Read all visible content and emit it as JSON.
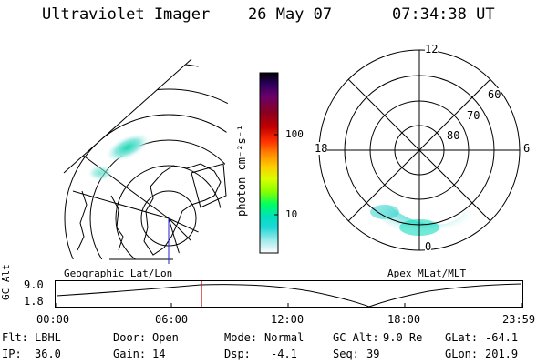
{
  "header": {
    "title": "Ultraviolet Imager",
    "date": "26 May 07",
    "time": "07:34:38 UT"
  },
  "left_map": {
    "caption": "Geographic Lat/Lon"
  },
  "colorbar": {
    "unit_label": "photon cm⁻²s⁻¹",
    "ticks": [
      "100",
      "10"
    ],
    "colors": [
      "#000000",
      "#2a005a",
      "#6a006a",
      "#8a0020",
      "#c00000",
      "#ff3000",
      "#ff8800",
      "#ffcc00",
      "#d8ff00",
      "#88ff00",
      "#00ff60",
      "#00e0c0",
      "#20d8d8",
      "#90e8e8",
      "#d8f4f4",
      "#ffffff"
    ]
  },
  "polar_plot": {
    "caption": "Apex  MLat/MLT",
    "mlt_labels": [
      "12",
      "18",
      "6",
      "0"
    ],
    "lat_labels": [
      "60",
      "70",
      "80"
    ]
  },
  "timeline": {
    "axis_label": "GC Alt",
    "y_ticks": [
      "9.0",
      "1.8"
    ],
    "x_ticks": [
      "00:00",
      "06:00",
      "12:00",
      "18:00",
      "23:59"
    ],
    "marker_color": "#cc0000"
  },
  "info": {
    "flt_label": "Flt:",
    "flt_value": "LBHL",
    "ip_label": "IP:",
    "ip_value": "36.0",
    "door_label": "Door:",
    "door_value": "Open",
    "gain_label": "Gain:",
    "gain_value": "14",
    "mode_label": "Mode:",
    "mode_value": "Normal",
    "dsp_label": "Dsp:",
    "dsp_value": "-4.1",
    "gcalt_label": "GC Alt:",
    "gcalt_value": "9.0 Re",
    "seq_label": "Seq:",
    "seq_value": "39",
    "glat_label": "GLat:",
    "glat_value": "-64.1",
    "glon_label": "GLon:",
    "glon_value": "201.9"
  }
}
